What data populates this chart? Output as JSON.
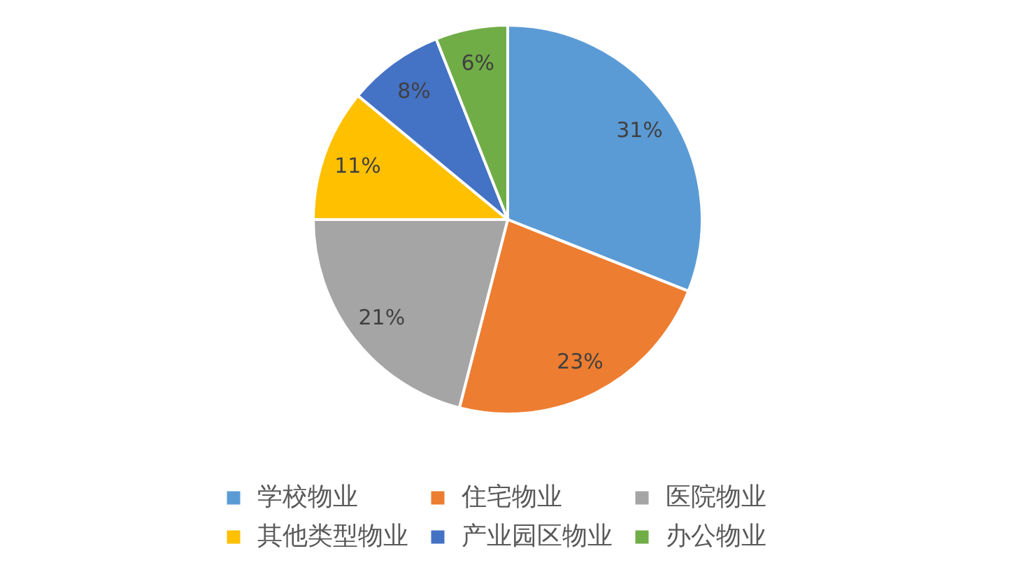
{
  "chart_data": {
    "type": "pie",
    "categories": [
      "学校物业",
      "住宅物业",
      "医院物业",
      "其他类型物业",
      "产业园区物业",
      "办公物业"
    ],
    "values": [
      31,
      23,
      21,
      11,
      8,
      6
    ],
    "colors": [
      "#5b9bd5",
      "#ed7d31",
      "#a5a5a5",
      "#ffc000",
      "#4472c4",
      "#70ad47"
    ],
    "value_labels": [
      "31%",
      "23%",
      "21%",
      "11%",
      "8%",
      "6%"
    ],
    "legend": "bottom"
  }
}
